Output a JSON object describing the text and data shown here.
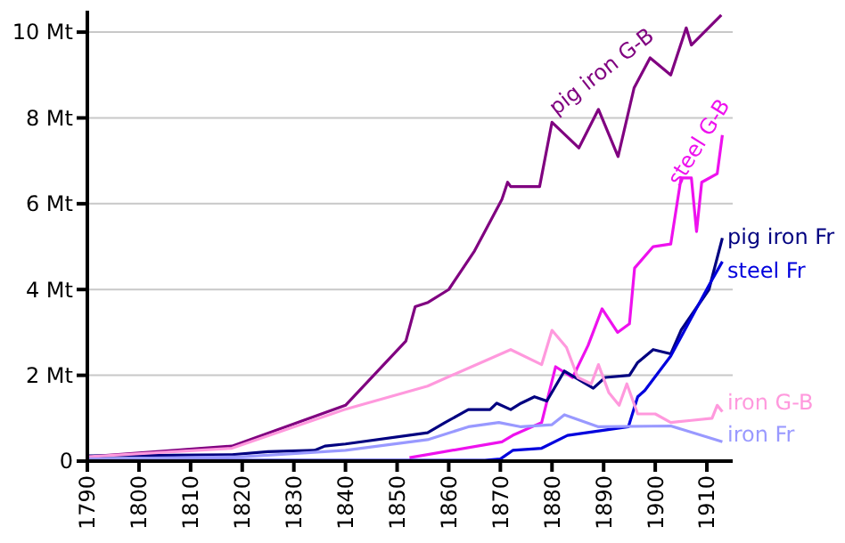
{
  "chart_data": {
    "type": "line",
    "xlim": [
      1790,
      1915
    ],
    "xticks": [
      1790,
      1800,
      1810,
      1820,
      1830,
      1840,
      1850,
      1860,
      1870,
      1880,
      1890,
      1900,
      1910
    ],
    "ylim": [
      0,
      10.5
    ],
    "yticks": [
      0,
      {
        "value": 2,
        "label": "2 Mt"
      },
      {
        "value": 4,
        "label": "4 Mt"
      },
      {
        "value": 6,
        "label": "6 Mt"
      },
      {
        "value": 8,
        "label": "8 Mt"
      },
      {
        "value": 10,
        "label": "10 Mt"
      }
    ],
    "grid": "y",
    "legend": false,
    "marker": "none",
    "line_style": "solid",
    "series": [
      {
        "name": "pig iron G-B",
        "color": "#800080",
        "x": [
          1790,
          1818,
          1840,
          1851.7,
          1853.5,
          1856,
          1860,
          1865,
          1870.3,
          1871.4,
          1872,
          1877.6,
          1880,
          1885.2,
          1889,
          1892.8,
          1895.9,
          1899,
          1903,
          1906,
          1907,
          1912.8
        ],
        "values": [
          0.1,
          0.35,
          1.3,
          2.8,
          3.6,
          3.7,
          4.0,
          4.9,
          6.1,
          6.5,
          6.4,
          6.4,
          7.9,
          7.3,
          8.2,
          7.1,
          8.7,
          9.4,
          9.0,
          10.1,
          9.7,
          10.4
        ]
      },
      {
        "name": "steel G-B",
        "color": "#ee11ee",
        "x": [
          1852.4,
          1870.3,
          1872.4,
          1878,
          1880.7,
          1884,
          1887,
          1889.7,
          1892.7,
          1895,
          1896,
          1899.6,
          1903,
          1905,
          1907,
          1908,
          1909,
          1912,
          1913
        ],
        "values": [
          0.08,
          0.45,
          0.6,
          0.9,
          2.2,
          1.95,
          2.7,
          3.55,
          3.0,
          3.2,
          4.5,
          5.0,
          5.06,
          6.6,
          6.6,
          5.35,
          6.5,
          6.7,
          7.6
        ]
      },
      {
        "name": "pig iron Fr",
        "color": "#000080",
        "x": [
          1790,
          1818,
          1825,
          1834,
          1836,
          1840,
          1855.9,
          1859.3,
          1863.8,
          1868,
          1869.3,
          1872,
          1874,
          1876.6,
          1879,
          1882.4,
          1888,
          1890.3,
          1895,
          1896.6,
          1899.6,
          1903,
          1905,
          1910.4,
          1913
        ],
        "values": [
          0.12,
          0.15,
          0.22,
          0.25,
          0.35,
          0.4,
          0.66,
          0.9,
          1.2,
          1.2,
          1.35,
          1.2,
          1.35,
          1.5,
          1.4,
          2.1,
          1.7,
          1.95,
          2.0,
          2.3,
          2.6,
          2.5,
          3.05,
          4.0,
          5.2
        ]
      },
      {
        "name": "steel Fr",
        "color": "#0000dd",
        "x": [
          1790,
          1867,
          1870,
          1872.4,
          1878,
          1883,
          1894.8,
          1896.6,
          1898,
          1903,
          1910.4,
          1913
        ],
        "values": [
          0.02,
          0.02,
          0.05,
          0.25,
          0.3,
          0.6,
          0.8,
          1.5,
          1.65,
          2.45,
          4.1,
          4.65
        ]
      },
      {
        "name": "iron G-B",
        "color": "#ff99dd",
        "x": [
          1790,
          1818,
          1839.7,
          1855.9,
          1872,
          1878,
          1880,
          1882.8,
          1885,
          1887.6,
          1889,
          1891,
          1893,
          1894.5,
          1896.6,
          1900,
          1903,
          1907,
          1911,
          1912,
          1913
        ],
        "values": [
          0.1,
          0.3,
          1.2,
          1.75,
          2.6,
          2.25,
          3.05,
          2.65,
          1.95,
          1.8,
          2.25,
          1.6,
          1.3,
          1.8,
          1.1,
          1.1,
          0.9,
          0.95,
          1.0,
          1.3,
          1.15
        ]
      },
      {
        "name": "iron Fr",
        "color": "#9999ff",
        "x": [
          1790,
          1820,
          1840,
          1855.9,
          1863.8,
          1869.7,
          1874,
          1880,
          1882.4,
          1889,
          1903,
          1913
        ],
        "values": [
          0.05,
          0.1,
          0.25,
          0.5,
          0.8,
          0.9,
          0.8,
          0.85,
          1.08,
          0.8,
          0.82,
          0.45
        ]
      }
    ]
  }
}
